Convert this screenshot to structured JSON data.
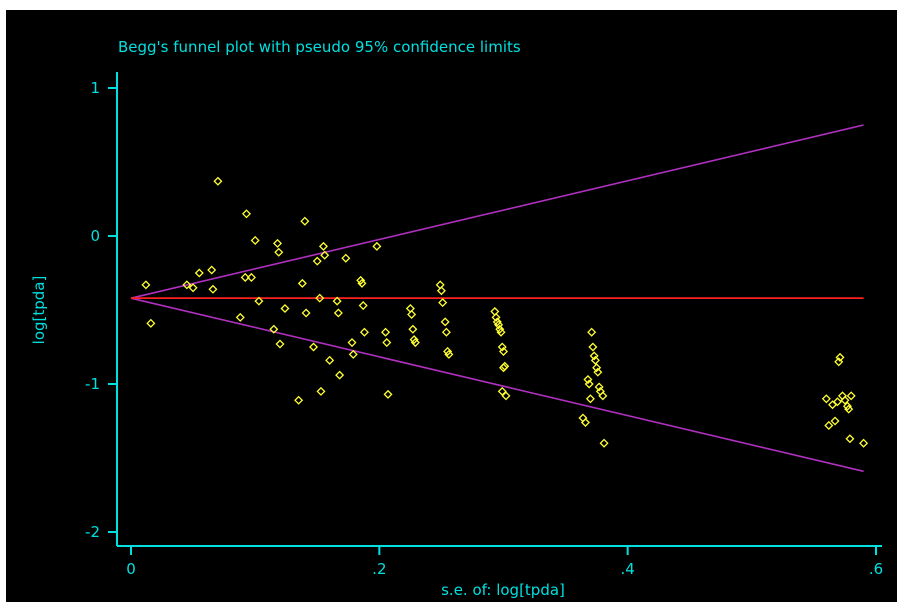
{
  "chart_data": {
    "type": "scatter",
    "title": "Begg's funnel plot with pseudo 95% confidence limits",
    "xlabel": "s.e. of: log[tpda]",
    "ylabel": "log[tpda]",
    "xlim": [
      0,
      0.6
    ],
    "ylim": [
      -2,
      1
    ],
    "x_ticks": [
      {
        "value": 0,
        "label": "0"
      },
      {
        "value": 0.2,
        "label": ".2"
      },
      {
        "value": 0.4,
        "label": ".4"
      },
      {
        "value": 0.6,
        "label": ".6"
      }
    ],
    "y_ticks": [
      {
        "value": 1,
        "label": "1"
      },
      {
        "value": 0,
        "label": "0"
      },
      {
        "value": -1,
        "label": "-1"
      },
      {
        "value": -2,
        "label": "-2"
      }
    ],
    "grid": false,
    "colors": {
      "background": "#000000",
      "frame": "#ffffff",
      "axes": "#00e0e0",
      "text": "#00e0e0",
      "points": "#ffff33",
      "center_line": "#ff2020",
      "limit_lines": "#b030c0"
    },
    "pooled_estimate": -0.42,
    "pseudo_limits": {
      "start": [
        0,
        -0.42
      ],
      "upper_end": [
        0.59,
        0.75
      ],
      "lower_end": [
        0.59,
        -1.59
      ]
    },
    "points": [
      [
        0.012,
        -0.33
      ],
      [
        0.016,
        -0.59
      ],
      [
        0.045,
        -0.33
      ],
      [
        0.05,
        -0.35
      ],
      [
        0.055,
        -0.25
      ],
      [
        0.065,
        -0.23
      ],
      [
        0.066,
        -0.36
      ],
      [
        0.07,
        0.37
      ],
      [
        0.088,
        -0.55
      ],
      [
        0.092,
        -0.28
      ],
      [
        0.093,
        0.15
      ],
      [
        0.097,
        -0.28
      ],
      [
        0.1,
        -0.03
      ],
      [
        0.103,
        -0.44
      ],
      [
        0.115,
        -0.63
      ],
      [
        0.118,
        -0.05
      ],
      [
        0.119,
        -0.11
      ],
      [
        0.12,
        -0.73
      ],
      [
        0.124,
        -0.49
      ],
      [
        0.135,
        -1.11
      ],
      [
        0.138,
        -0.32
      ],
      [
        0.14,
        0.1
      ],
      [
        0.141,
        -0.52
      ],
      [
        0.147,
        -0.75
      ],
      [
        0.15,
        -0.17
      ],
      [
        0.152,
        -0.42
      ],
      [
        0.153,
        -1.05
      ],
      [
        0.155,
        -0.07
      ],
      [
        0.156,
        -0.13
      ],
      [
        0.16,
        -0.84
      ],
      [
        0.166,
        -0.44
      ],
      [
        0.167,
        -0.52
      ],
      [
        0.168,
        -0.94
      ],
      [
        0.173,
        -0.15
      ],
      [
        0.178,
        -0.72
      ],
      [
        0.179,
        -0.8
      ],
      [
        0.185,
        -0.3
      ],
      [
        0.186,
        -0.32
      ],
      [
        0.187,
        -0.47
      ],
      [
        0.188,
        -0.65
      ],
      [
        0.198,
        -0.07
      ],
      [
        0.205,
        -0.65
      ],
      [
        0.206,
        -0.72
      ],
      [
        0.207,
        -1.07
      ],
      [
        0.225,
        -0.49
      ],
      [
        0.226,
        -0.53
      ],
      [
        0.227,
        -0.63
      ],
      [
        0.228,
        -0.7
      ],
      [
        0.229,
        -0.72
      ],
      [
        0.249,
        -0.33
      ],
      [
        0.25,
        -0.37
      ],
      [
        0.251,
        -0.45
      ],
      [
        0.253,
        -0.58
      ],
      [
        0.254,
        -0.65
      ],
      [
        0.255,
        -0.78
      ],
      [
        0.256,
        -0.8
      ],
      [
        0.293,
        -0.51
      ],
      [
        0.294,
        -0.55
      ],
      [
        0.295,
        -0.58
      ],
      [
        0.296,
        -0.6
      ],
      [
        0.297,
        -0.63
      ],
      [
        0.298,
        -0.65
      ],
      [
        0.299,
        -0.75
      ],
      [
        0.3,
        -0.78
      ],
      [
        0.301,
        -0.88
      ],
      [
        0.3,
        -0.89
      ],
      [
        0.299,
        -1.05
      ],
      [
        0.302,
        -1.08
      ],
      [
        0.364,
        -1.23
      ],
      [
        0.366,
        -1.26
      ],
      [
        0.368,
        -0.97
      ],
      [
        0.369,
        -1.0
      ],
      [
        0.37,
        -1.1
      ],
      [
        0.371,
        -0.65
      ],
      [
        0.372,
        -0.75
      ],
      [
        0.373,
        -0.81
      ],
      [
        0.374,
        -0.84
      ],
      [
        0.375,
        -0.89
      ],
      [
        0.376,
        -0.92
      ],
      [
        0.377,
        -1.02
      ],
      [
        0.378,
        -1.05
      ],
      [
        0.38,
        -1.08
      ],
      [
        0.381,
        -1.4
      ],
      [
        0.56,
        -1.1
      ],
      [
        0.562,
        -1.28
      ],
      [
        0.565,
        -1.14
      ],
      [
        0.567,
        -1.25
      ],
      [
        0.569,
        -1.12
      ],
      [
        0.57,
        -0.85
      ],
      [
        0.571,
        -0.82
      ],
      [
        0.573,
        -1.08
      ],
      [
        0.575,
        -1.11
      ],
      [
        0.577,
        -1.15
      ],
      [
        0.578,
        -1.17
      ],
      [
        0.579,
        -1.37
      ],
      [
        0.58,
        -1.08
      ],
      [
        0.59,
        -1.4
      ]
    ]
  }
}
